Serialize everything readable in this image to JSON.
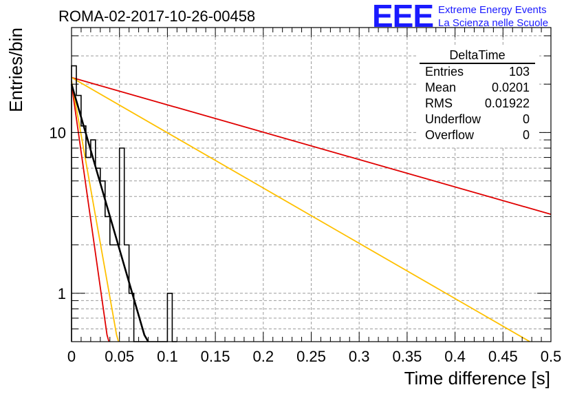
{
  "header": {
    "run_title": "ROMA-02-2017-10-26-00458",
    "logo_text": "EEE",
    "logo_line1": "Extreme Energy Events",
    "logo_line2": "La Scienza nelle Scuole"
  },
  "stats_box": {
    "title": "DeltaTime",
    "rows": [
      {
        "label": "Entries",
        "value": "103"
      },
      {
        "label": "Mean",
        "value": "0.0201"
      },
      {
        "label": "RMS",
        "value": "0.01922"
      },
      {
        "label": "Underflow",
        "value": "0"
      },
      {
        "label": "Overflow",
        "value": "0"
      }
    ]
  },
  "chart_data": {
    "type": "histogram",
    "title": "ROMA-02-2017-10-26-00458",
    "xlabel": "Time difference [s]",
    "ylabel": "Entries/bin",
    "xlim": [
      0,
      0.5
    ],
    "ylim": [
      0.5,
      45
    ],
    "yscale": "log",
    "grid": true,
    "x_ticks": [
      "0",
      "0.05",
      "0.1",
      "0.15",
      "0.2",
      "0.25",
      "0.3",
      "0.35",
      "0.4",
      "0.45",
      "0.5"
    ],
    "y_ticks": [
      "1",
      "10"
    ],
    "bin_width": 0.005,
    "bins": [
      {
        "x0": 0.0,
        "value": 26
      },
      {
        "x0": 0.005,
        "value": 17
      },
      {
        "x0": 0.01,
        "value": 11
      },
      {
        "x0": 0.015,
        "value": 7
      },
      {
        "x0": 0.02,
        "value": 9
      },
      {
        "x0": 0.025,
        "value": 6
      },
      {
        "x0": 0.03,
        "value": 5
      },
      {
        "x0": 0.035,
        "value": 3
      },
      {
        "x0": 0.04,
        "value": 2
      },
      {
        "x0": 0.045,
        "value": 2
      },
      {
        "x0": 0.05,
        "value": 8
      },
      {
        "x0": 0.055,
        "value": 2
      },
      {
        "x0": 0.06,
        "value": 1
      },
      {
        "x0": 0.065,
        "value": 0
      },
      {
        "x0": 0.07,
        "value": 0
      },
      {
        "x0": 0.075,
        "value": 0
      },
      {
        "x0": 0.08,
        "value": 0
      },
      {
        "x0": 0.085,
        "value": 0
      },
      {
        "x0": 0.09,
        "value": 0
      },
      {
        "x0": 0.095,
        "value": 0
      },
      {
        "x0": 0.1,
        "value": 1
      },
      {
        "x0": 0.105,
        "value": 0
      }
    ],
    "fit_lines": [
      {
        "color": "#e00000",
        "points": [
          [
            0.0,
            22
          ],
          [
            0.5,
            3.1
          ]
        ]
      },
      {
        "color": "#ffc000",
        "points": [
          [
            0.0,
            22
          ],
          [
            0.478,
            0.5
          ]
        ]
      },
      {
        "color": "#e00000",
        "points": [
          [
            0.0,
            20
          ],
          [
            0.037,
            0.55
          ],
          [
            0.039,
            0.5
          ]
        ]
      },
      {
        "color": "#ffc000",
        "points": [
          [
            0.0,
            21
          ],
          [
            0.047,
            0.55
          ],
          [
            0.049,
            0.5
          ]
        ]
      },
      {
        "color": "#000000",
        "points": [
          [
            0.0,
            20
          ],
          [
            0.076,
            0.55
          ],
          [
            0.08,
            0.5
          ]
        ]
      }
    ]
  }
}
